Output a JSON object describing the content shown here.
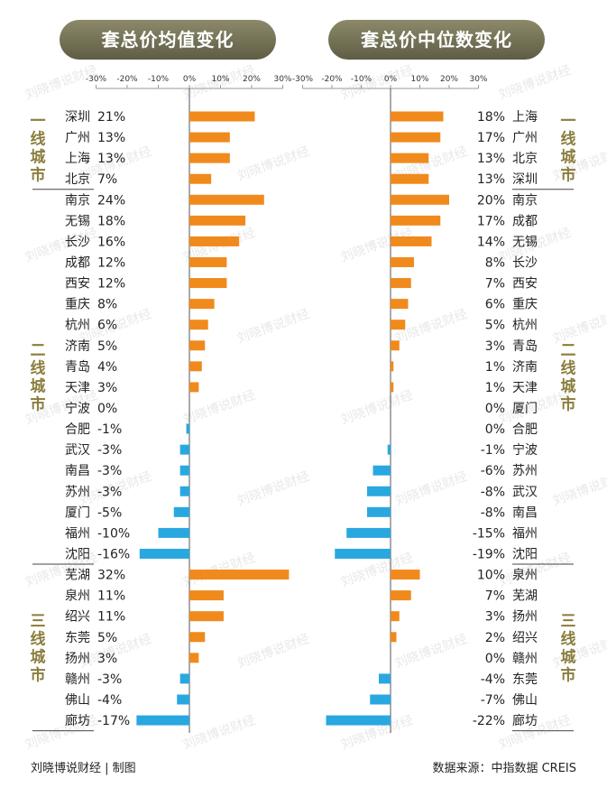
{
  "footer": {
    "left": "刘晓博说财经 | 制图",
    "right": "数据来源：中指数据 CREIS"
  },
  "watermark": "刘晓博说财经",
  "colors": {
    "positive": "#f08a1c",
    "negative": "#29a8e0",
    "tier_label": "#8a7d3c",
    "axis": "#9a9a9a",
    "pill": "#6b6a50"
  },
  "chart_data": [
    {
      "type": "bar",
      "orientation": "horizontal",
      "title": "套总价均值变化",
      "unit": "%",
      "xlim": [
        -30,
        30
      ],
      "ticks": [
        "-30%",
        "-20%",
        "-10%",
        "0%",
        "10%",
        "20%",
        "30%"
      ],
      "tick_values": [
        -30,
        -20,
        -10,
        0,
        10,
        20,
        30
      ],
      "groups": [
        {
          "label": "一线城市",
          "items": [
            {
              "city": "深圳",
              "value": 21,
              "label": "21%"
            },
            {
              "city": "广州",
              "value": 13,
              "label": "13%"
            },
            {
              "city": "上海",
              "value": 13,
              "label": "13%"
            },
            {
              "city": "北京",
              "value": 7,
              "label": "7%"
            }
          ]
        },
        {
          "label": "二线城市",
          "items": [
            {
              "city": "南京",
              "value": 24,
              "label": "24%"
            },
            {
              "city": "无锡",
              "value": 18,
              "label": "18%"
            },
            {
              "city": "长沙",
              "value": 16,
              "label": "16%"
            },
            {
              "city": "成都",
              "value": 12,
              "label": "12%"
            },
            {
              "city": "西安",
              "value": 12,
              "label": "12%"
            },
            {
              "city": "重庆",
              "value": 8,
              "label": "8%"
            },
            {
              "city": "杭州",
              "value": 6,
              "label": "6%"
            },
            {
              "city": "济南",
              "value": 5,
              "label": "5%"
            },
            {
              "city": "青岛",
              "value": 4,
              "label": "4%"
            },
            {
              "city": "天津",
              "value": 3,
              "label": "3%"
            },
            {
              "city": "宁波",
              "value": 0,
              "label": "0%"
            },
            {
              "city": "合肥",
              "value": -1,
              "label": "-1%"
            },
            {
              "city": "武汉",
              "value": -3,
              "label": "-3%"
            },
            {
              "city": "南昌",
              "value": -3,
              "label": "-3%"
            },
            {
              "city": "苏州",
              "value": -3,
              "label": "-3%"
            },
            {
              "city": "厦门",
              "value": -5,
              "label": "-5%"
            },
            {
              "city": "福州",
              "value": -10,
              "label": "-10%"
            },
            {
              "city": "沈阳",
              "value": -16,
              "label": "-16%"
            }
          ]
        },
        {
          "label": "三线城市",
          "items": [
            {
              "city": "芜湖",
              "value": 32,
              "label": "32%"
            },
            {
              "city": "泉州",
              "value": 11,
              "label": "11%"
            },
            {
              "city": "绍兴",
              "value": 11,
              "label": "11%"
            },
            {
              "city": "东莞",
              "value": 5,
              "label": "5%"
            },
            {
              "city": "扬州",
              "value": 3,
              "label": "3%"
            },
            {
              "city": "赣州",
              "value": -3,
              "label": "-3%"
            },
            {
              "city": "佛山",
              "value": -4,
              "label": "-4%"
            },
            {
              "city": "廊坊",
              "value": -17,
              "label": "-17%"
            }
          ]
        }
      ]
    },
    {
      "type": "bar",
      "orientation": "horizontal",
      "title": "套总价中位数变化",
      "unit": "%",
      "xlim": [
        -30,
        30
      ],
      "ticks": [
        "-30%",
        "-20%",
        "-10%",
        "0%",
        "10%",
        "20%",
        "30%"
      ],
      "tick_values": [
        -30,
        -20,
        -10,
        0,
        10,
        20,
        30
      ],
      "groups": [
        {
          "label": "一线城市",
          "items": [
            {
              "city": "上海",
              "value": 18,
              "label": "18%"
            },
            {
              "city": "广州",
              "value": 17,
              "label": "17%"
            },
            {
              "city": "北京",
              "value": 13,
              "label": "13%"
            },
            {
              "city": "深圳",
              "value": 13,
              "label": "13%"
            }
          ]
        },
        {
          "label": "二线城市",
          "items": [
            {
              "city": "南京",
              "value": 20,
              "label": "20%"
            },
            {
              "city": "成都",
              "value": 17,
              "label": "17%"
            },
            {
              "city": "无锡",
              "value": 14,
              "label": "14%"
            },
            {
              "city": "长沙",
              "value": 8,
              "label": "8%"
            },
            {
              "city": "西安",
              "value": 7,
              "label": "7%"
            },
            {
              "city": "重庆",
              "value": 6,
              "label": "6%"
            },
            {
              "city": "杭州",
              "value": 5,
              "label": "5%"
            },
            {
              "city": "青岛",
              "value": 3,
              "label": "3%"
            },
            {
              "city": "济南",
              "value": 1,
              "label": "1%"
            },
            {
              "city": "天津",
              "value": 1,
              "label": "1%"
            },
            {
              "city": "厦门",
              "value": 0,
              "label": "0%"
            },
            {
              "city": "合肥",
              "value": 0,
              "label": "0%"
            },
            {
              "city": "宁波",
              "value": -1,
              "label": "-1%"
            },
            {
              "city": "苏州",
              "value": -6,
              "label": "-6%"
            },
            {
              "city": "武汉",
              "value": -8,
              "label": "-8%"
            },
            {
              "city": "南昌",
              "value": -8,
              "label": "-8%"
            },
            {
              "city": "福州",
              "value": -15,
              "label": "-15%"
            },
            {
              "city": "沈阳",
              "value": -19,
              "label": "-19%"
            }
          ]
        },
        {
          "label": "三线城市",
          "items": [
            {
              "city": "泉州",
              "value": 10,
              "label": "10%"
            },
            {
              "city": "芜湖",
              "value": 7,
              "label": "7%"
            },
            {
              "city": "扬州",
              "value": 3,
              "label": "3%"
            },
            {
              "city": "绍兴",
              "value": 2,
              "label": "2%"
            },
            {
              "city": "赣州",
              "value": 0,
              "label": "0%"
            },
            {
              "city": "东莞",
              "value": -4,
              "label": "-4%"
            },
            {
              "city": "佛山",
              "value": -7,
              "label": "-7%"
            },
            {
              "city": "廊坊",
              "value": -22,
              "label": "-22%"
            }
          ]
        }
      ]
    }
  ]
}
